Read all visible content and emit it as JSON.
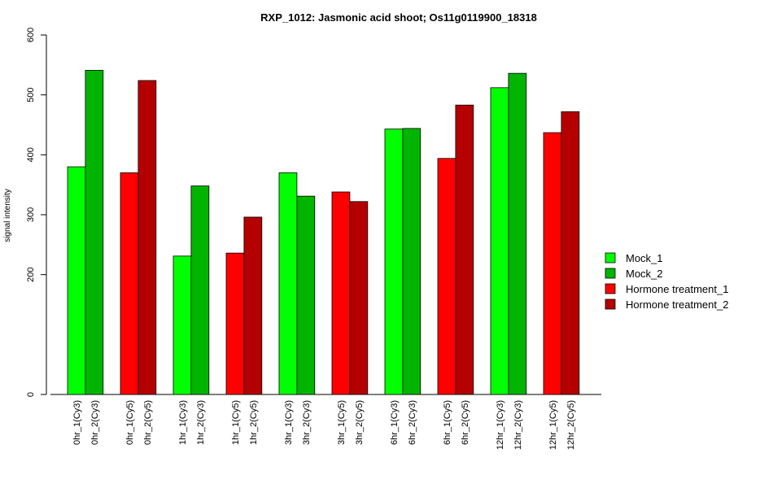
{
  "chart_data": {
    "type": "bar",
    "title": "RXP_1012: Jasmonic acid shoot; Os11g0119900_18318",
    "xlabel": "",
    "ylabel": "signal intensity",
    "ylim": [
      0,
      600
    ],
    "yticks": [
      0,
      200,
      300,
      400,
      500,
      600
    ],
    "grid": false,
    "legend_position": "right",
    "categories": [
      "0hr_1(Cy3)",
      "0hr_2(Cy3)",
      "0hr_1(Cy5)",
      "0hr_2(Cy5)",
      "1hr_1(Cy3)",
      "1hr_2(Cy3)",
      "1hr_1(Cy5)",
      "1hr_2(Cy5)",
      "3hr_1(Cy3)",
      "3hr_2(Cy3)",
      "3hr_1(Cy5)",
      "3hr_2(Cy5)",
      "6hr_1(Cy3)",
      "6hr_2(Cy3)",
      "6hr_1(Cy5)",
      "6hr_2(Cy5)",
      "12hr_1(Cy3)",
      "12hr_2(Cy3)",
      "12hr_1(Cy5)",
      "12hr_2(Cy5)"
    ],
    "values": [
      380,
      541,
      370,
      524,
      231,
      348,
      236,
      296,
      370,
      331,
      338,
      322,
      443,
      444,
      394,
      483,
      512,
      536,
      437,
      472
    ],
    "bar_series": [
      0,
      1,
      2,
      3,
      0,
      1,
      2,
      3,
      0,
      1,
      2,
      3,
      0,
      1,
      2,
      3,
      0,
      1,
      2,
      3
    ],
    "series": [
      {
        "name": "Mock_1",
        "color": "#00ff00"
      },
      {
        "name": "Mock_2",
        "color": "#00b400"
      },
      {
        "name": "Hormone treatment_1",
        "color": "#ff0000"
      },
      {
        "name": "Hormone treatment_2",
        "color": "#b40000"
      }
    ]
  }
}
